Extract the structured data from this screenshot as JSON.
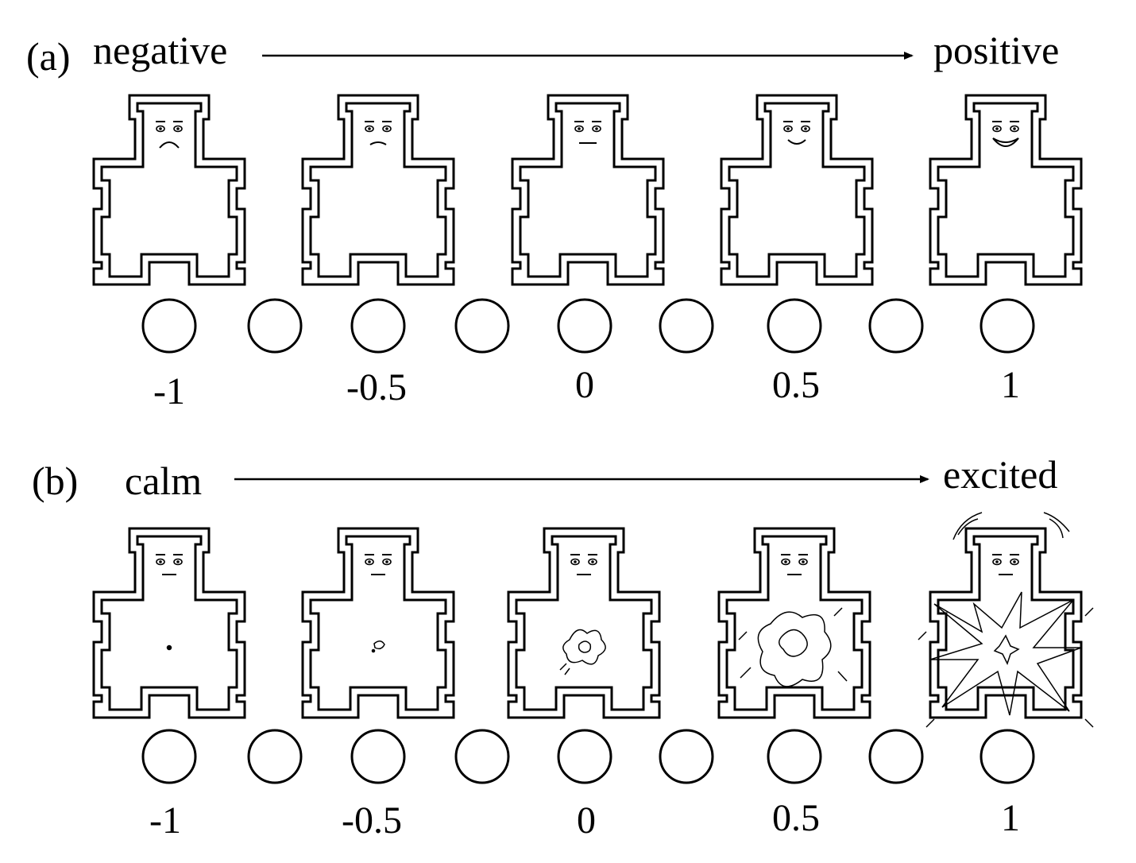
{
  "panels": [
    {
      "tag": "(a)",
      "left_label": "negative",
      "right_label": "positive",
      "variant": "valence",
      "scale_values": [
        "-1",
        "-0.5",
        "0",
        "0.5",
        "1"
      ],
      "option_count": 9
    },
    {
      "tag": "(b)",
      "left_label": "calm",
      "right_label": "excited",
      "variant": "arousal",
      "scale_values": [
        "-1",
        "-0.5",
        "0",
        "0.5",
        "1"
      ],
      "option_count": 9
    }
  ],
  "colors": {
    "ink": "#000000",
    "background": "#ffffff"
  }
}
